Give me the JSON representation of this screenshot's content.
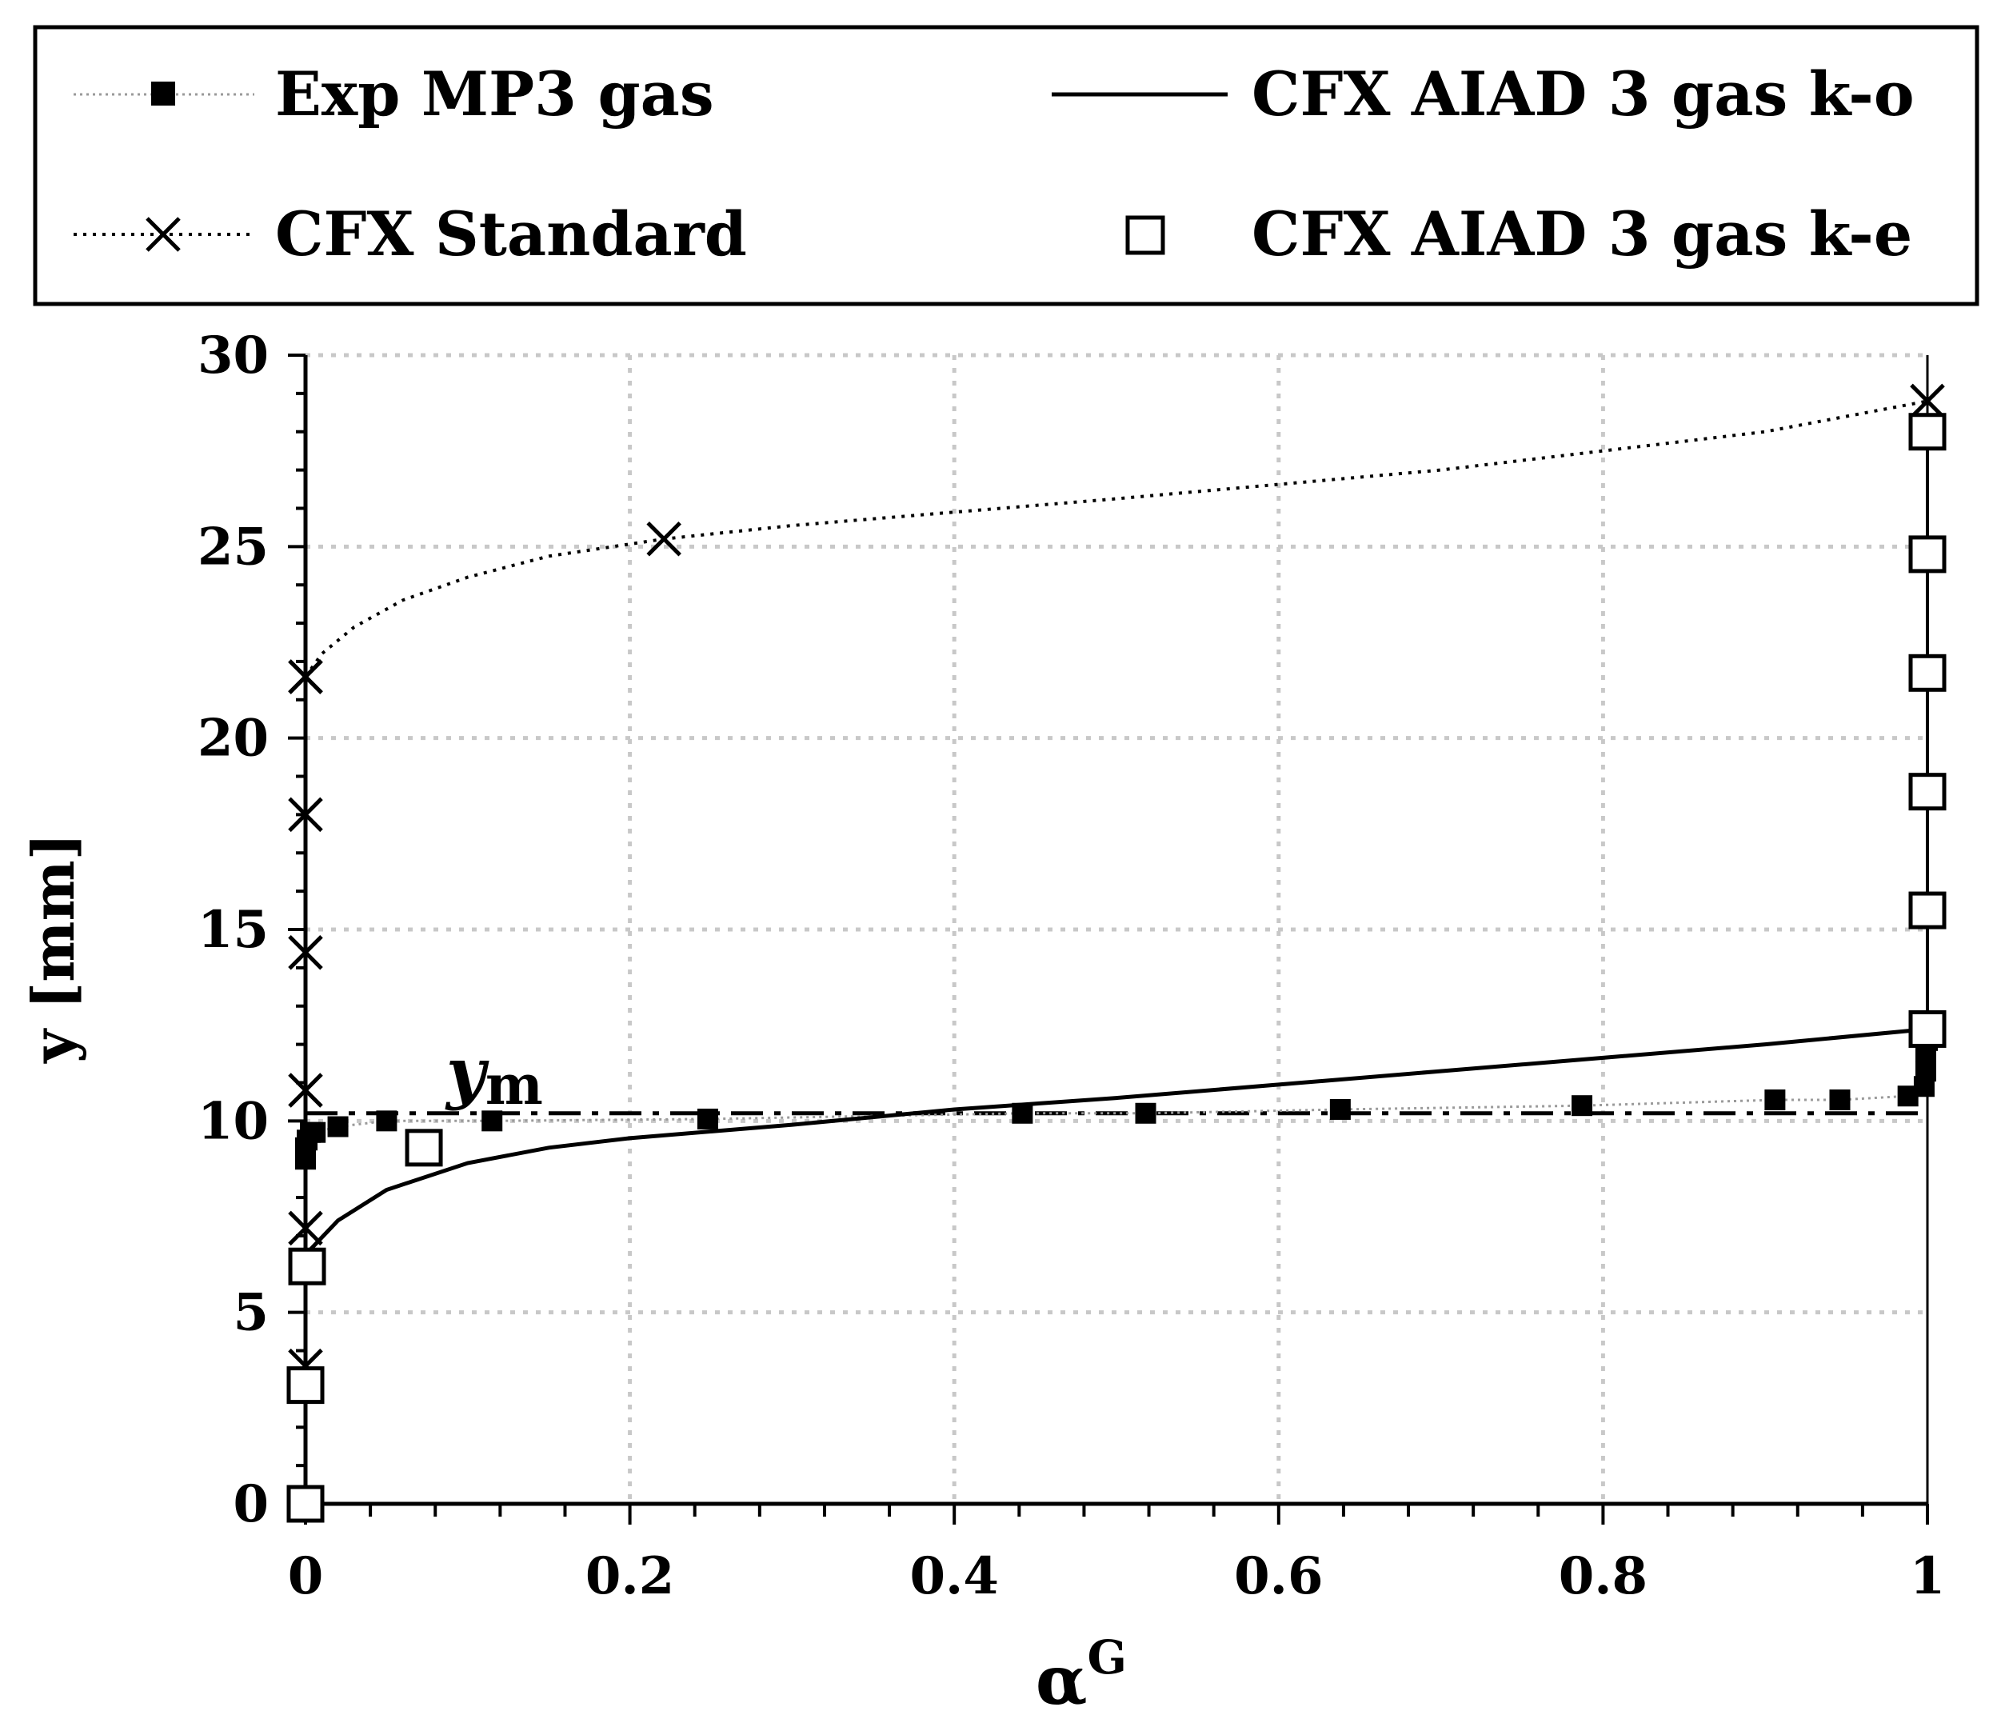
{
  "chart_data": {
    "type": "line",
    "title": "",
    "xlabel": "α",
    "xlabel_superscript": "G",
    "ylabel": "y [mm]",
    "xlim": [
      0,
      1
    ],
    "ylim": [
      0,
      30
    ],
    "x_ticks": [
      "0",
      "0.2",
      "0.4",
      "0.6",
      "0.8",
      "1"
    ],
    "y_ticks": [
      "0",
      "5",
      "10",
      "15",
      "20",
      "25",
      "30"
    ],
    "grid": true,
    "legend_position": "top",
    "annotation": {
      "text": "y",
      "subscript": "m",
      "y": 10.2
    },
    "reference_line": {
      "name": "y_m",
      "y": 10.2,
      "style": "dashed"
    },
    "series": [
      {
        "name": "Exp MP3 gas",
        "marker": "filled-square",
        "line": "gray-dotted",
        "x": [
          0.0,
          0.0,
          0.001,
          0.003,
          0.006,
          0.02,
          0.05,
          0.115,
          0.248,
          0.442,
          0.518,
          0.638,
          0.787,
          0.906,
          0.946,
          0.988,
          0.998,
          0.999,
          0.999,
          1.0
        ],
        "y": [
          9.0,
          9.3,
          9.5,
          9.7,
          9.7,
          9.85,
          10.0,
          10.0,
          10.05,
          10.2,
          10.2,
          10.3,
          10.4,
          10.55,
          10.55,
          10.65,
          10.9,
          11.3,
          11.8,
          12.1
        ]
      },
      {
        "name": "CFX Standard",
        "marker": "x",
        "line": "dotted",
        "x": [
          0.0,
          0.0,
          0.0,
          0.0,
          0.0,
          0.0,
          0.0,
          0.0,
          0.221,
          1.0
        ],
        "y": [
          0.0,
          3.6,
          7.2,
          10.8,
          14.4,
          18.0,
          21.6,
          21.6,
          25.2,
          28.8
        ]
      },
      {
        "name": "CFX AIAD 3 gas k-o",
        "marker": "none",
        "line": "solid",
        "x": [
          0.002,
          0.02,
          0.05,
          0.1,
          0.15,
          0.2,
          0.3,
          0.4,
          0.5,
          0.6,
          0.7,
          0.8,
          0.9,
          1.0
        ],
        "y": [
          6.6,
          7.4,
          8.2,
          8.9,
          9.3,
          9.55,
          9.9,
          10.3,
          10.6,
          10.95,
          11.3,
          11.65,
          12.0,
          12.4
        ]
      },
      {
        "name": "CFX AIAD 3 gas k-e",
        "marker": "open-square",
        "line": "none",
        "x": [
          0.0,
          0.0,
          0.001,
          0.073,
          1.0,
          1.0,
          1.0,
          1.0,
          1.0,
          1.0
        ],
        "y": [
          0.0,
          3.1,
          6.2,
          9.3,
          12.4,
          15.5,
          18.6,
          21.7,
          24.8,
          28.0
        ]
      }
    ]
  }
}
